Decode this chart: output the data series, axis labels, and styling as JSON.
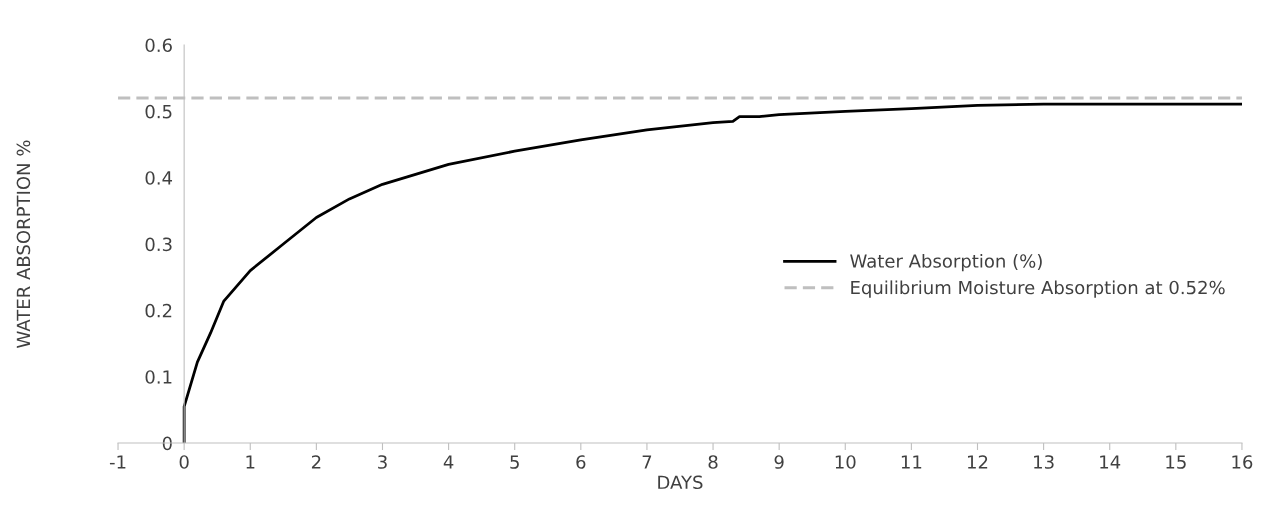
{
  "chart_data": {
    "type": "line",
    "xlabel": "DAYS",
    "ylabel": "WATER ABSORPTION %",
    "xlim": [
      -1,
      16
    ],
    "xticks": [
      -1,
      0,
      1,
      2,
      3,
      4,
      5,
      6,
      7,
      8,
      9,
      10,
      11,
      12,
      13,
      14,
      15,
      16
    ],
    "ylim": [
      0,
      0.6
    ],
    "yticks": [
      0,
      0.1,
      0.2,
      0.3,
      0.4,
      0.5,
      0.6
    ],
    "grid": false,
    "legend": "right",
    "marker": "none",
    "series": [
      {
        "name": "Water Absorption (%)",
        "color": "#000000",
        "line_style": "solid",
        "x": [
          0,
          0,
          0.2,
          0.4,
          0.6,
          1,
          1.5,
          2,
          2.5,
          3,
          3.5,
          4,
          5,
          6,
          7,
          8,
          8.3,
          8.4,
          8.7,
          9,
          10,
          11,
          12,
          13,
          16
        ],
        "values": [
          0,
          0.055,
          0.122,
          0.166,
          0.214,
          0.26,
          0.3,
          0.34,
          0.368,
          0.39,
          0.405,
          0.42,
          0.44,
          0.457,
          0.472,
          0.483,
          0.485,
          0.492,
          0.492,
          0.495,
          0.5,
          0.504,
          0.509,
          0.511,
          0.511
        ]
      },
      {
        "name": "Equilibrium Moisture Absorption at 0.52%",
        "color": "#bfbfbf",
        "line_style": "dashed",
        "x": [
          -1,
          16
        ],
        "values": [
          0.52,
          0.52
        ]
      }
    ]
  }
}
